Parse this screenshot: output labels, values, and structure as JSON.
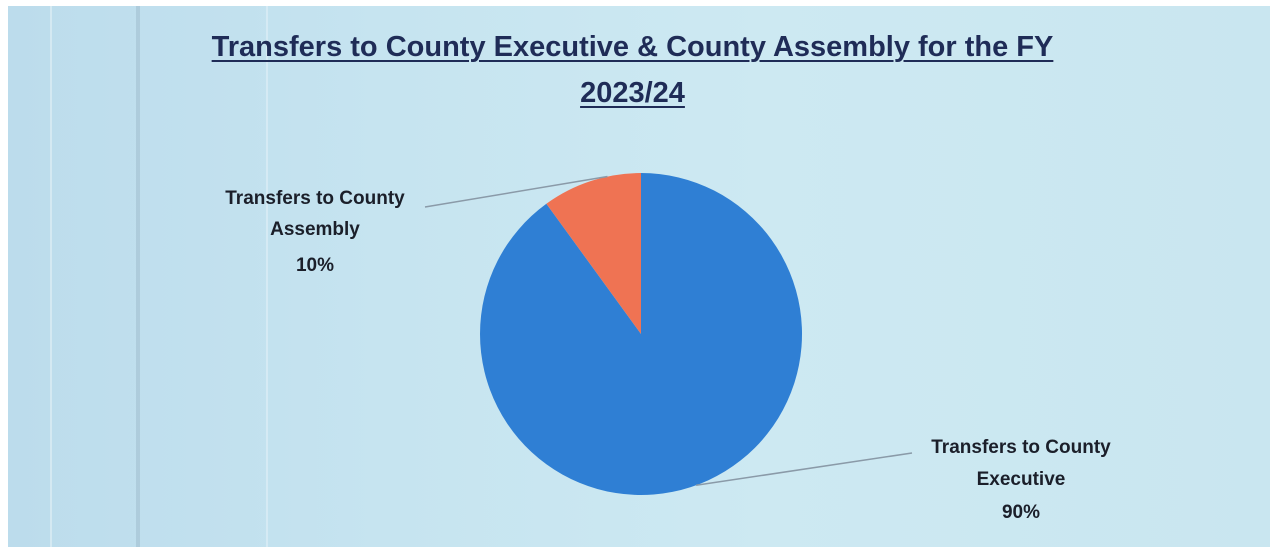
{
  "chart_data": {
    "type": "pie",
    "title_lines": [
      "Transfers to County Executive & County Assembly for the FY",
      "2023/24"
    ],
    "slices": [
      {
        "label_lines": [
          "Transfers to County",
          "Executive"
        ],
        "value": 90,
        "value_label": "90%",
        "color": "#2f7fd4"
      },
      {
        "label_lines": [
          "Transfers to County",
          "Assembly"
        ],
        "value": 10,
        "value_label": "10%",
        "color": "#ef7353"
      }
    ],
    "legend": "none",
    "data_labels": "outside with leader lines"
  }
}
